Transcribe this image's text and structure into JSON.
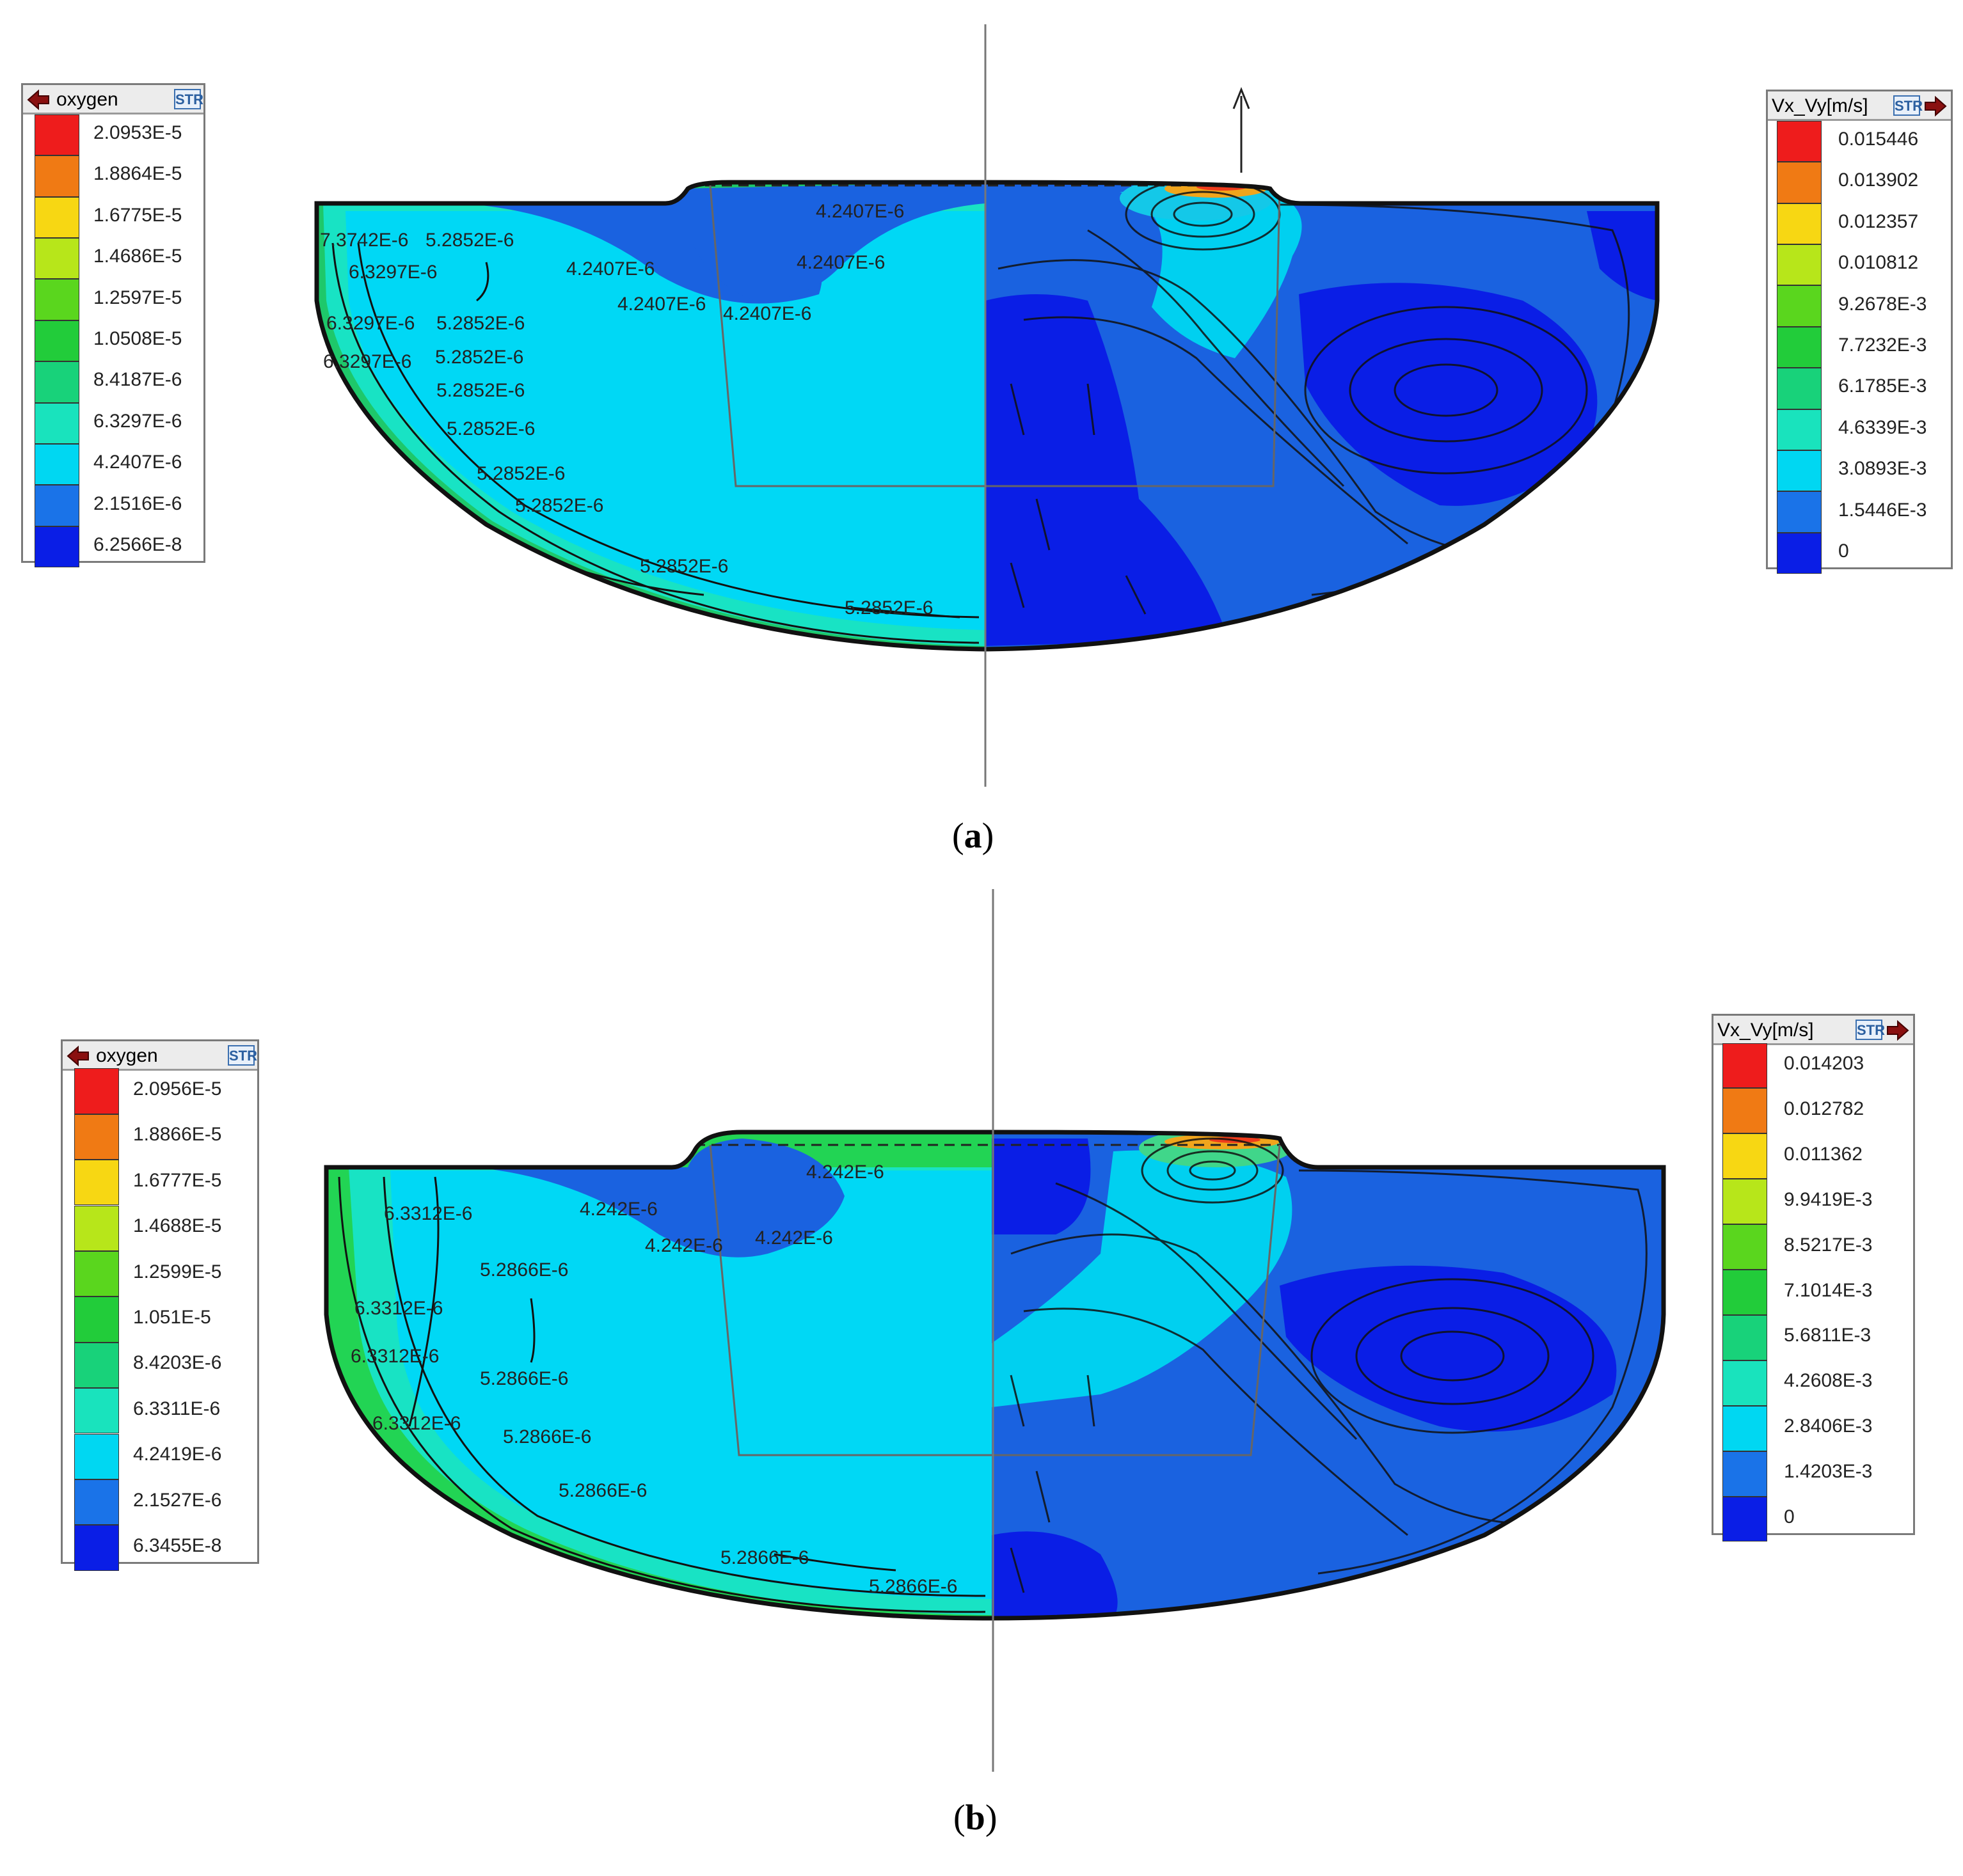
{
  "panel_a": {
    "caption_letter": "a",
    "oxygen_legend": {
      "title": "oxygen",
      "icon": "STR",
      "values": [
        "2.0953E-5",
        "1.8864E-5",
        "1.6775E-5",
        "1.4686E-5",
        "1.2597E-5",
        "1.0508E-5",
        "8.4187E-6",
        "6.3297E-6",
        "4.2407E-6",
        "2.1516E-6",
        "6.2566E-8"
      ]
    },
    "velocity_legend": {
      "title": "Vx_Vy[m/s]",
      "icon": "STR",
      "values": [
        "0.015446",
        "0.013902",
        "0.012357",
        "0.010812",
        "9.2678E-3",
        "7.7232E-3",
        "6.1785E-3",
        "4.6339E-3",
        "3.0893E-3",
        "1.5446E-3",
        "0"
      ]
    },
    "contour_labels": [
      "7.3742E-6",
      "5.2852E-6",
      "6.3297E-6",
      "4.2407E-6",
      "4.2407E-6",
      "4.2407E-6",
      "4.2407E-6",
      "4.2407E-6",
      "6.3297E-6",
      "5.2852E-6",
      "6.3297E-6",
      "5.2852E-6",
      "5.2852E-6",
      "5.2852E-6",
      "5.2852E-6",
      "5.2852E-6",
      "5.2852E-6",
      "5.2852E-6"
    ]
  },
  "panel_b": {
    "caption_letter": "b",
    "oxygen_legend": {
      "title": "oxygen",
      "icon": "STR",
      "values": [
        "2.0956E-5",
        "1.8866E-5",
        "1.6777E-5",
        "1.4688E-5",
        "1.2599E-5",
        "1.051E-5",
        "8.4203E-6",
        "6.3311E-6",
        "4.2419E-6",
        "2.1527E-6",
        "6.3455E-8"
      ]
    },
    "velocity_legend": {
      "title": "Vx_Vy[m/s]",
      "icon": "STR",
      "values": [
        "0.014203",
        "0.012782",
        "0.011362",
        "9.9419E-3",
        "8.5217E-3",
        "7.1014E-3",
        "5.6811E-3",
        "4.2608E-3",
        "2.8406E-3",
        "1.4203E-3",
        "0"
      ]
    },
    "contour_labels": [
      "4.242E-6",
      "6.3312E-6",
      "4.242E-6",
      "4.242E-6",
      "4.242E-6",
      "5.2866E-6",
      "6.3312E-6",
      "6.3312E-6",
      "5.2866E-6",
      "6.3312E-6",
      "5.2866E-6",
      "5.2866E-6",
      "5.2866E-6",
      "5.2866E-6"
    ]
  },
  "legend_colors": [
    "#ee1c1c",
    "#f07a14",
    "#f7d713",
    "#b7e61a",
    "#5ad61e",
    "#22cc3a",
    "#18d27a",
    "#19e3bd",
    "#00d7f2",
    "#1a73e8",
    "#0a1ee6"
  ],
  "field_colors": {
    "oxygen_main": "#00d8f5",
    "oxygen_mid": "#18e3c4",
    "oxygen_edge": "#22d454",
    "velocity_low": "#0a1ee6",
    "velocity_mid": "#1a62e0",
    "velocity_fast": "#00d0f0",
    "velocity_peak": "#ef3b1c"
  }
}
